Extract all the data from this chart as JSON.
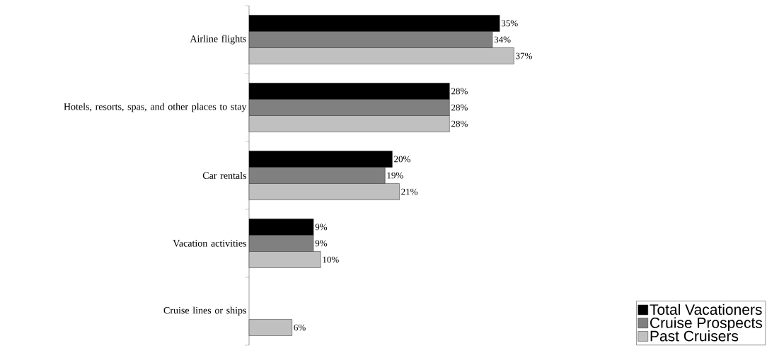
{
  "chart_data": {
    "type": "bar",
    "orientation": "horizontal",
    "categories": [
      "Airline flights",
      "Hotels, resorts, spas, and other places to stay",
      "Car rentals",
      "Vacation activities",
      "Cruise lines or ships"
    ],
    "series": [
      {
        "name": "Total Vacationers",
        "color": "#000000",
        "values": [
          35,
          28,
          20,
          9,
          null
        ],
        "value_labels": [
          "35%",
          "28%",
          "20%",
          "9%",
          null
        ]
      },
      {
        "name": "Cruise Prospects",
        "color": "#808080",
        "values": [
          34,
          28,
          19,
          9,
          null
        ],
        "value_labels": [
          "34%",
          "28%",
          "19%",
          "9%",
          null
        ]
      },
      {
        "name": "Past Cruisers",
        "color": "#c0c0c0",
        "values": [
          37,
          28,
          21,
          10,
          6
        ],
        "value_labels": [
          "37%",
          "28%",
          "21%",
          "10%",
          "6%"
        ]
      }
    ],
    "legend": "bottom right"
  }
}
